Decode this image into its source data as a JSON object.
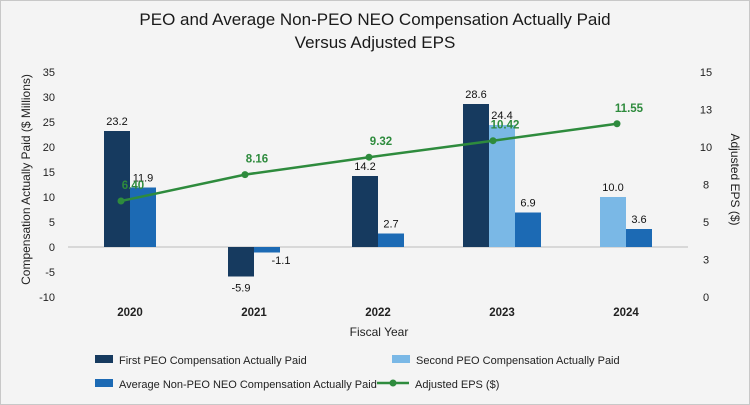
{
  "chart_data": {
    "type": "bar",
    "title_line1": "PEO and Average Non-PEO NEO Compensation Actually Paid",
    "title_line2": "Versus Adjusted EPS",
    "xlabel": "Fiscal Year",
    "ylabel": "Compensation Actually Paid ($ Millions)",
    "y2label": "Adjusted EPS ($)",
    "ylim": [
      -10,
      35
    ],
    "y2lim": [
      0,
      15
    ],
    "yticks": [
      "35",
      "30",
      "25",
      "20",
      "15",
      "10",
      "5",
      "0",
      "-5",
      "-10"
    ],
    "y2ticks": [
      "15",
      "13",
      "10",
      "8",
      "5",
      "3",
      "0"
    ],
    "categories": [
      "2020",
      "2021",
      "2022",
      "2023",
      "2024"
    ],
    "series": [
      {
        "name": "First PEO Compensation Actually Paid",
        "color": "#163a5f",
        "values": [
          23.2,
          -5.9,
          14.2,
          28.6,
          null
        ],
        "labels": [
          "23.2",
          "-5.9",
          "14.2",
          "28.6",
          ""
        ]
      },
      {
        "name": "Second PEO Compensation Actually Paid",
        "color": "#7ab8e6",
        "values": [
          null,
          null,
          null,
          24.4,
          10.0
        ],
        "labels": [
          "",
          "",
          "",
          "24.4",
          "10.0"
        ]
      },
      {
        "name": "Average Non-PEO NEO Compensation Actually Paid",
        "color": "#1c6ab4",
        "values": [
          11.9,
          -1.1,
          2.7,
          6.9,
          3.6
        ],
        "labels": [
          "11.9",
          "-1.1",
          "2.7",
          "6.9",
          "3.6"
        ]
      }
    ],
    "line_series": {
      "name": "Adjusted EPS ($)",
      "color": "#2e8b3d",
      "values": [
        6.4,
        8.16,
        9.32,
        10.42,
        11.55
      ],
      "labels": [
        "6.40",
        "8.16",
        "9.32",
        "10.42",
        "11.55"
      ]
    }
  }
}
